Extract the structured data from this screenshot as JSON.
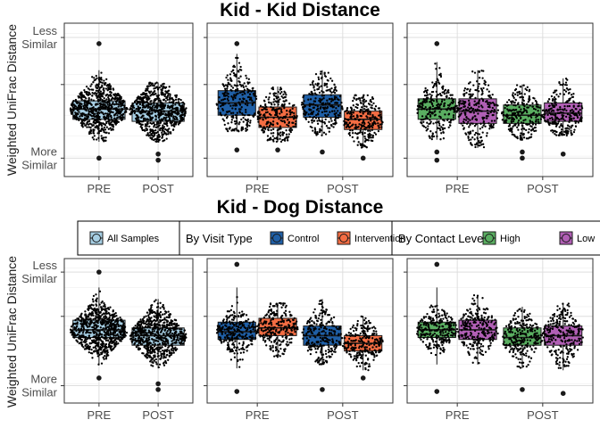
{
  "chart_data": [
    {
      "title": "Kid - Kid Distance",
      "type": "box-beeswarm",
      "ylabel": "Weighted UniFrac Distance",
      "y_tick_labels": [
        "Less\nSimilar",
        "",
        "More\nSimilar"
      ],
      "x_categories": [
        "PRE",
        "POST"
      ],
      "panels": [
        {
          "group": "All Samples",
          "boxes": [
            {
              "x": "PRE",
              "series": "All Samples",
              "q1": 0.38,
              "median": 0.43,
              "q3": 0.47,
              "min": 0.27,
              "max": 0.62,
              "outliers": [
                0.75,
                0.19
              ]
            },
            {
              "x": "POST",
              "series": "All Samples",
              "q1": 0.37,
              "median": 0.42,
              "q3": 0.46,
              "min": 0.27,
              "max": 0.56,
              "outliers": [
                0.21,
                0.18
              ]
            }
          ]
        },
        {
          "group": "By Visit Type",
          "boxes": [
            {
              "x": "PRE",
              "series": "Control",
              "q1": 0.4,
              "median": 0.46,
              "q3": 0.52,
              "min": 0.32,
              "max": 0.7,
              "outliers": [
                0.75,
                0.23
              ]
            },
            {
              "x": "PRE",
              "series": "Intervention",
              "q1": 0.34,
              "median": 0.39,
              "q3": 0.44,
              "min": 0.27,
              "max": 0.54,
              "outliers": [
                0.23
              ]
            },
            {
              "x": "POST",
              "series": "Control",
              "q1": 0.39,
              "median": 0.45,
              "q3": 0.5,
              "min": 0.3,
              "max": 0.62,
              "outliers": [
                0.22
              ]
            },
            {
              "x": "POST",
              "series": "Intervention",
              "q1": 0.33,
              "median": 0.38,
              "q3": 0.42,
              "min": 0.24,
              "max": 0.5,
              "outliers": [
                0.19
              ]
            }
          ]
        },
        {
          "group": "By Contact Level",
          "boxes": [
            {
              "x": "PRE",
              "series": "High",
              "q1": 0.38,
              "median": 0.43,
              "q3": 0.48,
              "min": 0.28,
              "max": 0.66,
              "outliers": [
                0.75,
                0.22,
                0.18
              ]
            },
            {
              "x": "PRE",
              "series": "Low",
              "q1": 0.36,
              "median": 0.42,
              "q3": 0.48,
              "min": 0.24,
              "max": 0.62,
              "outliers": []
            },
            {
              "x": "POST",
              "series": "High",
              "q1": 0.36,
              "median": 0.4,
              "q3": 0.45,
              "min": 0.28,
              "max": 0.55,
              "outliers": [
                0.22,
                0.19
              ]
            },
            {
              "x": "POST",
              "series": "Low",
              "q1": 0.37,
              "median": 0.41,
              "q3": 0.46,
              "min": 0.3,
              "max": 0.58,
              "outliers": [
                0.21
              ]
            }
          ]
        }
      ]
    },
    {
      "title": "Kid - Dog Distance",
      "type": "box-beeswarm",
      "ylabel": "Weighted UniFrac Distance",
      "y_tick_labels": [
        "Less\nSimilar",
        "",
        "More\nSimilar"
      ],
      "x_categories": [
        "PRE",
        "POST"
      ],
      "panels": [
        {
          "group": "All Samples",
          "boxes": [
            {
              "x": "PRE",
              "series": "All Samples",
              "q1": 0.44,
              "median": 0.48,
              "q3": 0.53,
              "min": 0.3,
              "max": 0.7,
              "outliers": [
                0.78,
                0.23
              ]
            },
            {
              "x": "POST",
              "series": "All Samples",
              "q1": 0.4,
              "median": 0.45,
              "q3": 0.49,
              "min": 0.28,
              "max": 0.64,
              "outliers": [
                0.2,
                0.17
              ]
            }
          ]
        },
        {
          "group": "By Visit Type",
          "boxes": [
            {
              "x": "PRE",
              "series": "Control",
              "q1": 0.43,
              "median": 0.47,
              "q3": 0.52,
              "min": 0.28,
              "max": 0.7,
              "outliers": [
                0.82,
                0.16
              ]
            },
            {
              "x": "PRE",
              "series": "Intervention",
              "q1": 0.45,
              "median": 0.49,
              "q3": 0.54,
              "min": 0.34,
              "max": 0.62,
              "outliers": []
            },
            {
              "x": "POST",
              "series": "Control",
              "q1": 0.4,
              "median": 0.45,
              "q3": 0.5,
              "min": 0.3,
              "max": 0.64,
              "outliers": [
                0.17
              ]
            },
            {
              "x": "POST",
              "series": "Intervention",
              "q1": 0.37,
              "median": 0.41,
              "q3": 0.45,
              "min": 0.27,
              "max": 0.55,
              "outliers": [
                0.23
              ]
            }
          ]
        },
        {
          "group": "By Contact Level",
          "boxes": [
            {
              "x": "PRE",
              "series": "High",
              "q1": 0.44,
              "median": 0.48,
              "q3": 0.52,
              "min": 0.3,
              "max": 0.7,
              "outliers": [
                0.82,
                0.16
              ]
            },
            {
              "x": "PRE",
              "series": "Low",
              "q1": 0.43,
              "median": 0.48,
              "q3": 0.53,
              "min": 0.3,
              "max": 0.66,
              "outliers": []
            },
            {
              "x": "POST",
              "series": "High",
              "q1": 0.4,
              "median": 0.44,
              "q3": 0.49,
              "min": 0.28,
              "max": 0.6,
              "outliers": [
                0.17
              ]
            },
            {
              "x": "POST",
              "series": "Low",
              "q1": 0.4,
              "median": 0.45,
              "q3": 0.5,
              "min": 0.27,
              "max": 0.62,
              "outliers": [
                0.15
              ]
            }
          ]
        }
      ]
    }
  ],
  "legend": {
    "groups": [
      {
        "title": "",
        "items": [
          {
            "label": "All Samples",
            "color": "#a6cee3"
          }
        ]
      },
      {
        "title": "By Visit Type",
        "items": [
          {
            "label": "Control",
            "color": "#1f5fa6"
          },
          {
            "label": "Intervention",
            "color": "#f46d43"
          }
        ]
      },
      {
        "title": "By Contact Level",
        "items": [
          {
            "label": "High",
            "color": "#5aae61"
          },
          {
            "label": "Low",
            "color": "#b15fb5"
          }
        ]
      }
    ]
  }
}
